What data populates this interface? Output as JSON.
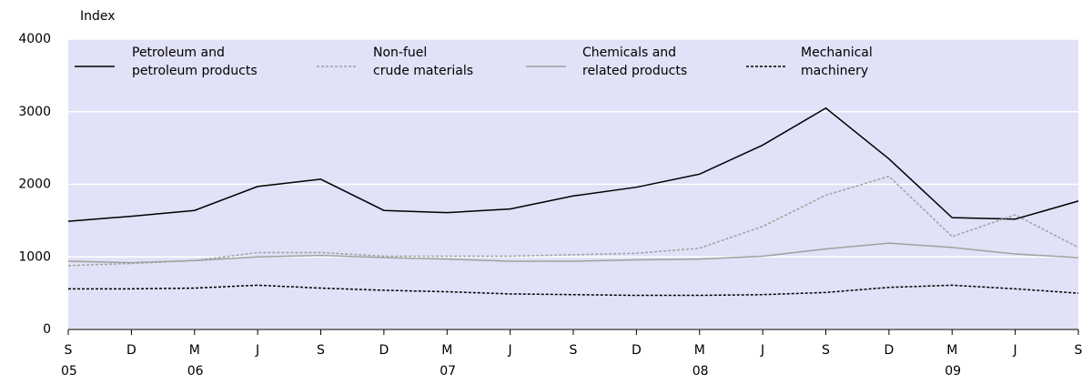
{
  "chart_data": {
    "type": "line",
    "y_label": "Index",
    "categories": [
      "S",
      "D",
      "M",
      "J",
      "S",
      "D",
      "M",
      "J",
      "S",
      "D",
      "M",
      "J",
      "S",
      "D",
      "M",
      "J",
      "S"
    ],
    "year_labels": [
      "05",
      null,
      "06",
      null,
      null,
      null,
      "07",
      null,
      null,
      null,
      "08",
      null,
      null,
      null,
      "09",
      null,
      null
    ],
    "ylim": [
      0,
      4000
    ],
    "yticks": [
      0,
      1000,
      2000,
      3000,
      4000
    ],
    "grid": true,
    "background": "#e1e1f7",
    "series": [
      {
        "name": "Petroleum and\npetroleum products",
        "color": "#000000",
        "dash": "none",
        "values": [
          1490,
          1560,
          1640,
          1970,
          2070,
          1640,
          1610,
          1660,
          1840,
          1960,
          2140,
          2540,
          3050,
          2350,
          1540,
          1520,
          1770
        ]
      },
      {
        "name": "Non-fuel\ncrude materials",
        "color": "#a0a0a0",
        "dash": "3,2",
        "values": [
          880,
          910,
          950,
          1060,
          1060,
          1010,
          1010,
          1010,
          1030,
          1050,
          1120,
          1420,
          1850,
          2110,
          1280,
          1580,
          1130
        ]
      },
      {
        "name": "Chemicals and\nrelated products",
        "color": "#a0a0a0",
        "dash": "none",
        "values": [
          940,
          920,
          950,
          1000,
          1020,
          990,
          970,
          940,
          940,
          960,
          970,
          1010,
          1110,
          1190,
          1130,
          1040,
          990
        ]
      },
      {
        "name": "Mechanical\nmachinery",
        "color": "#000000",
        "dash": "3,2",
        "values": [
          560,
          560,
          570,
          610,
          570,
          540,
          520,
          490,
          480,
          470,
          470,
          480,
          510,
          580,
          610,
          560,
          500
        ]
      }
    ]
  }
}
